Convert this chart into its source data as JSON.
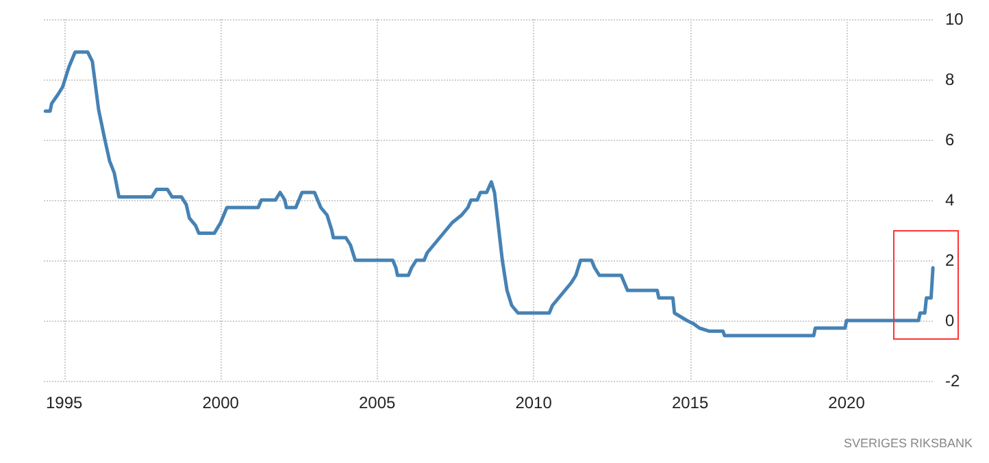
{
  "chart_data": {
    "type": "line",
    "annotations": [
      "SVERIGES RIKSBANK"
    ],
    "xlim": [
      1994.35,
      2022.8
    ],
    "xticks": [
      1995,
      2000,
      2005,
      2010,
      2015,
      2020
    ],
    "ylim": [
      -2,
      10
    ],
    "yticks": [
      -2,
      0,
      2,
      4,
      6,
      8,
      10
    ],
    "grid": true,
    "marker": "none",
    "line_style": "solid",
    "series": [
      {
        "color": "#4682b4",
        "x": [
          1994.4,
          1994.55,
          1994.6,
          1994.8,
          1994.95,
          1995.15,
          1995.35,
          1995.75,
          1995.9,
          1996.1,
          1996.3,
          1996.45,
          1996.6,
          1996.75,
          1997.8,
          1997.95,
          1998.3,
          1998.45,
          1998.75,
          1998.9,
          1999.0,
          1999.2,
          1999.3,
          1999.8,
          2000.0,
          2000.2,
          2001.2,
          2001.3,
          2001.75,
          2001.9,
          2002.05,
          2002.1,
          2002.4,
          2002.6,
          2003.0,
          2003.1,
          2003.2,
          2003.4,
          2003.55,
          2003.6,
          2004.0,
          2004.15,
          2004.3,
          2005.5,
          2005.6,
          2005.65,
          2006.0,
          2006.1,
          2006.25,
          2006.5,
          2006.6,
          2006.8,
          2007.0,
          2007.2,
          2007.4,
          2007.7,
          2007.9,
          2008.0,
          2008.2,
          2008.3,
          2008.5,
          2008.65,
          2008.75,
          2009.0,
          2009.15,
          2009.3,
          2009.5,
          2010.5,
          2010.6,
          2010.8,
          2011.0,
          2011.2,
          2011.35,
          2011.5,
          2011.85,
          2011.95,
          2012.1,
          2012.8,
          2012.9,
          2013.0,
          2013.1,
          2013.95,
          2014.0,
          2014.45,
          2014.5,
          2014.9,
          2015.1,
          2015.3,
          2015.6,
          2016.05,
          2016.1,
          2018.95,
          2019.0,
          2019.95,
          2020.0,
          2022.3,
          2022.35,
          2022.5,
          2022.55,
          2022.7,
          2022.76
        ],
        "values": [
          6.95,
          6.95,
          7.2,
          7.5,
          7.75,
          8.41,
          8.91,
          8.91,
          8.6,
          7.0,
          6.0,
          5.3,
          4.9,
          4.1,
          4.1,
          4.35,
          4.35,
          4.1,
          4.1,
          3.85,
          3.4,
          3.15,
          2.9,
          2.9,
          3.25,
          3.75,
          3.75,
          4.0,
          4.0,
          4.25,
          4.0,
          3.75,
          3.75,
          4.25,
          4.25,
          4.0,
          3.75,
          3.5,
          3.0,
          2.75,
          2.75,
          2.5,
          2.0,
          2.0,
          1.75,
          1.5,
          1.5,
          1.75,
          2.0,
          2.0,
          2.25,
          2.5,
          2.75,
          3.0,
          3.25,
          3.5,
          3.75,
          4.0,
          4.0,
          4.25,
          4.25,
          4.6,
          4.25,
          2.0,
          1.0,
          0.5,
          0.25,
          0.25,
          0.5,
          0.75,
          1.0,
          1.25,
          1.5,
          2.0,
          2.0,
          1.75,
          1.5,
          1.5,
          1.25,
          1.0,
          1.0,
          1.0,
          0.75,
          0.75,
          0.25,
          0.0,
          -0.1,
          -0.25,
          -0.35,
          -0.35,
          -0.5,
          -0.5,
          -0.25,
          -0.25,
          0.0,
          0.0,
          0.25,
          0.25,
          0.75,
          0.75,
          1.75
        ]
      }
    ]
  }
}
